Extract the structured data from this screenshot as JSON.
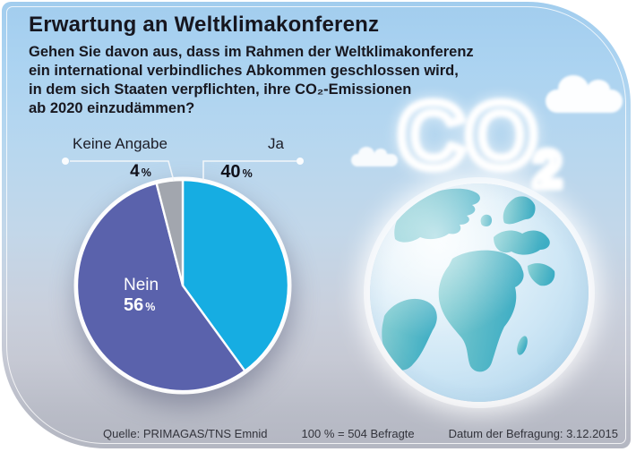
{
  "header": {
    "title": "Erwartung an Weltklimakonferenz",
    "question_lines": [
      "Gehen Sie davon aus, dass im Rahmen der Weltklimakonferenz",
      "ein international verbindliches Abkommen geschlossen wird,",
      "in dem sich Staaten verpflichten, ihre CO₂-Emissionen",
      "ab 2020 einzudämmen?"
    ]
  },
  "chart_data": {
    "type": "pie",
    "title": "Erwartung an Weltklimakonferenz",
    "labels": [
      "Ja",
      "Nein",
      "Keine Angabe"
    ],
    "values": [
      40,
      56,
      4
    ],
    "unit": "%",
    "colors": [
      "#16ade2",
      "#5a62ac",
      "#a2a6ae"
    ],
    "start_angle_deg": -90,
    "direction": "clockwise",
    "legend_position": "callout-labels"
  },
  "pie_ui": {
    "percent": "%"
  },
  "globe": {
    "co2_main": "CO",
    "co2_sub": "2"
  },
  "footer": {
    "source": "Quelle: PRIMAGAS/TNS Emnid",
    "sample": "100 % = 504 Befragte",
    "date": "Datum der Befragung: 3.12.2015"
  },
  "style": {
    "sky_top": "#a6d1f0",
    "gray_bottom": "#b6b9c4",
    "text_dark": "#16161f",
    "land_teal": "#4fb5c6",
    "ocean_light": "#d9ecf8"
  }
}
